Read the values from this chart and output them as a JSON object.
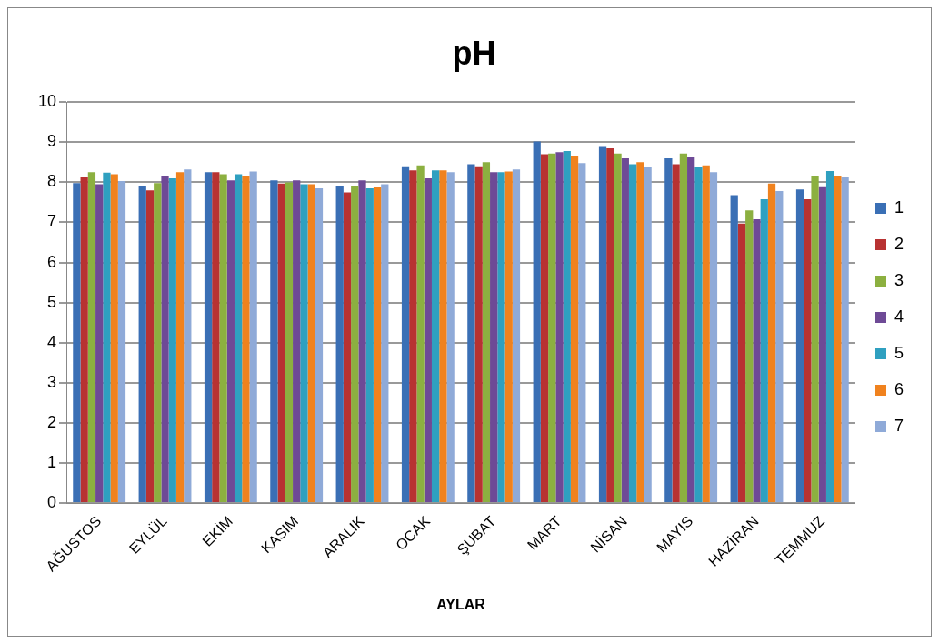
{
  "chart_data": {
    "type": "bar",
    "title": "pH",
    "xlabel": "AYLAR",
    "categories": [
      "AĞUSTOS",
      "EYLÜL",
      "EKİM",
      "KASIM",
      "ARALIK",
      "OCAK",
      "ŞUBAT",
      "MART",
      "NİSAN",
      "MAYIS",
      "HAZİRAN",
      "TEMMUZ"
    ],
    "series": [
      {
        "name": "1",
        "color": "#3a6fb5",
        "values": [
          7.98,
          7.9,
          8.25,
          8.05,
          7.92,
          8.38,
          8.45,
          9.02,
          8.88,
          8.6,
          7.68,
          7.82
        ]
      },
      {
        "name": "2",
        "color": "#b83232",
        "values": [
          8.12,
          7.8,
          8.25,
          7.97,
          7.75,
          8.3,
          8.38,
          8.7,
          8.85,
          8.45,
          6.97,
          7.58
        ]
      },
      {
        "name": "3",
        "color": "#8cb040",
        "values": [
          8.25,
          7.98,
          8.2,
          8.0,
          7.9,
          8.42,
          8.5,
          8.72,
          8.72,
          8.72,
          7.3,
          8.15
        ]
      },
      {
        "name": "4",
        "color": "#6e4a96",
        "values": [
          7.95,
          8.15,
          8.05,
          8.05,
          8.05,
          8.1,
          8.25,
          8.75,
          8.6,
          8.62,
          7.08,
          7.88
        ]
      },
      {
        "name": "5",
        "color": "#2fa0c0",
        "values": [
          8.24,
          8.1,
          8.2,
          7.95,
          7.85,
          8.3,
          8.25,
          8.78,
          8.45,
          8.37,
          7.58,
          8.28
        ]
      },
      {
        "name": "6",
        "color": "#f0821e",
        "values": [
          8.2,
          8.25,
          8.15,
          7.95,
          7.87,
          8.3,
          8.27,
          8.65,
          8.5,
          8.42,
          7.97,
          8.15
        ]
      },
      {
        "name": "7",
        "color": "#8faad8",
        "values": [
          8.03,
          8.32,
          8.27,
          7.85,
          7.95,
          8.25,
          8.32,
          8.48,
          8.37,
          8.25,
          7.78,
          8.12
        ]
      }
    ],
    "ylim": [
      0,
      10
    ],
    "yticks": [
      0,
      1,
      2,
      3,
      4,
      5,
      6,
      7,
      8,
      9,
      10
    ],
    "grid": "y",
    "legend": "right"
  }
}
